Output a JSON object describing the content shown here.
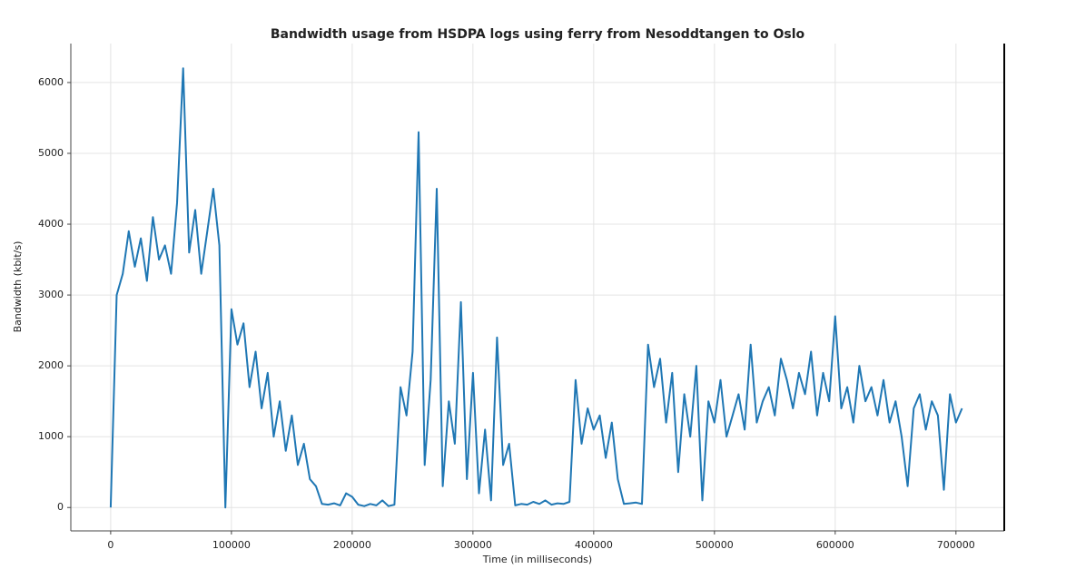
{
  "chart_data": {
    "type": "line",
    "title": "Bandwidth usage from HSDPA logs using ferry from Nesoddtangen to Oslo",
    "x_label": "Time (in milliseconds)",
    "y_label": "Bandwidth (kbit/s)",
    "x": [
      0,
      5000,
      10000,
      15000,
      20000,
      25000,
      30000,
      35000,
      40000,
      45000,
      50000,
      55000,
      60000,
      65000,
      70000,
      75000,
      80000,
      85000,
      90000,
      95000,
      100000,
      105000,
      110000,
      115000,
      120000,
      125000,
      130000,
      135000,
      140000,
      145000,
      150000,
      155000,
      160000,
      165000,
      170000,
      175000,
      180000,
      185000,
      190000,
      195000,
      200000,
      205000,
      210000,
      215000,
      220000,
      225000,
      230000,
      235000,
      240000,
      245000,
      250000,
      255000,
      260000,
      265000,
      270000,
      275000,
      280000,
      285000,
      290000,
      295000,
      300000,
      305000,
      310000,
      315000,
      320000,
      325000,
      330000,
      335000,
      340000,
      345000,
      350000,
      355000,
      360000,
      365000,
      370000,
      375000,
      380000,
      385000,
      390000,
      395000,
      400000,
      405000,
      410000,
      415000,
      420000,
      425000,
      430000,
      435000,
      440000,
      445000,
      450000,
      455000,
      460000,
      465000,
      470000,
      475000,
      480000,
      485000,
      490000,
      495000,
      500000,
      505000,
      510000,
      515000,
      520000,
      525000,
      530000,
      535000,
      540000,
      545000,
      550000,
      555000,
      560000,
      565000,
      570000,
      575000,
      580000,
      585000,
      590000,
      595000,
      600000,
      605000,
      610000,
      615000,
      620000,
      625000,
      630000,
      635000,
      640000,
      645000,
      650000,
      655000,
      660000,
      665000,
      670000,
      675000,
      680000,
      685000,
      690000,
      695000,
      700000,
      705000
    ],
    "series": [
      {
        "name": "Bandwidth",
        "color": "#1f77b4",
        "values": [
          0,
          3000,
          3300,
          3900,
          3400,
          3800,
          3200,
          4100,
          3500,
          3700,
          3300,
          4300,
          6200,
          3600,
          4200,
          3300,
          3900,
          4500,
          3700,
          0,
          2800,
          2300,
          2600,
          1700,
          2200,
          1400,
          1900,
          1000,
          1500,
          800,
          1300,
          600,
          900,
          400,
          300,
          50,
          40,
          60,
          30,
          200,
          150,
          40,
          20,
          50,
          30,
          100,
          20,
          40,
          1700,
          1300,
          2200,
          5300,
          600,
          1800,
          4500,
          300,
          1500,
          900,
          2900,
          400,
          1900,
          200,
          1100,
          100,
          2400,
          600,
          900,
          30,
          50,
          40,
          80,
          50,
          100,
          40,
          60,
          50,
          80,
          1800,
          900,
          1400,
          1100,
          1300,
          700,
          1200,
          400,
          50,
          60,
          70,
          50,
          2300,
          1700,
          2100,
          1200,
          1900,
          500,
          1600,
          1000,
          2000,
          100,
          1500,
          1200,
          1800,
          1000,
          1300,
          1600,
          1100,
          2300,
          1200,
          1500,
          1700,
          1300,
          2100,
          1800,
          1400,
          1900,
          1600,
          2200,
          1300,
          1900,
          1500,
          2700,
          1400,
          1700,
          1200,
          2000,
          1500,
          1700,
          1300,
          1800,
          1200,
          1500,
          1000,
          300,
          1400,
          1600,
          1100,
          1500,
          1300,
          250,
          1600,
          1200,
          1400
        ]
      }
    ],
    "xlim": [
      -33000,
      740000
    ],
    "xticks": [
      0,
      100000,
      200000,
      300000,
      400000,
      500000,
      600000,
      700000
    ],
    "ylim": [
      -330,
      6550
    ],
    "yticks": [
      0,
      1000,
      2000,
      3000,
      4000,
      5000,
      6000
    ],
    "grid": true
  }
}
